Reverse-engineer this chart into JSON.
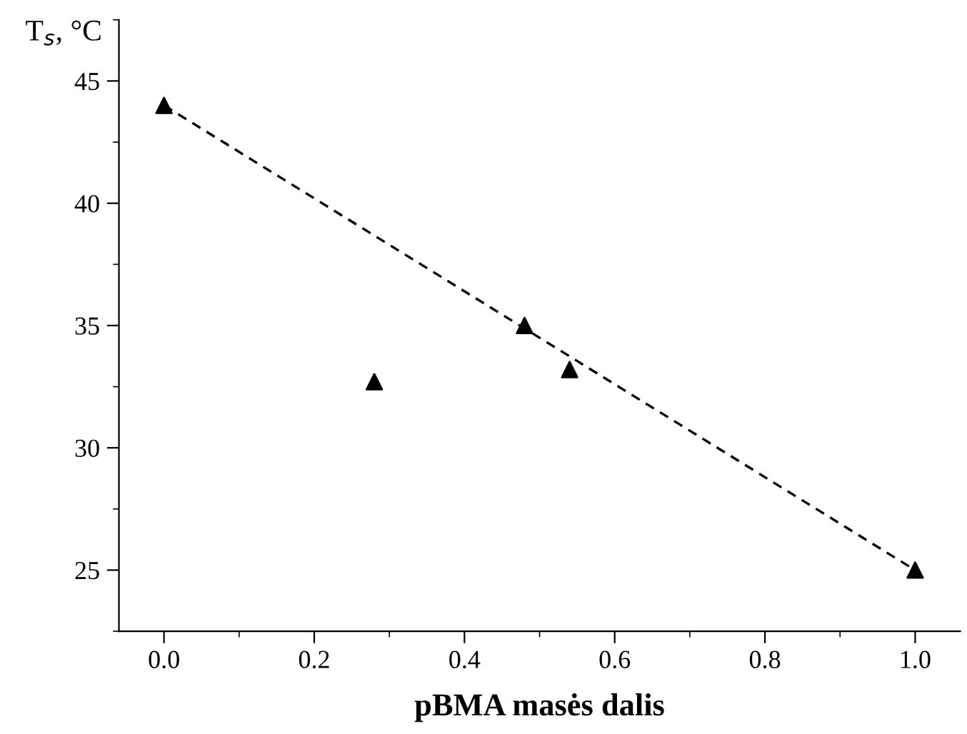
{
  "chart_data": {
    "type": "scatter",
    "xlabel": "pBMA masės dalis",
    "ylabel": "T$_{s}$, °C",
    "xlim": [
      -0.06,
      1.06
    ],
    "ylim": [
      22.5,
      47.5
    ],
    "xticks": [
      {
        "value": 0,
        "label": "0.0"
      },
      {
        "value": 0.2,
        "label": "0.2"
      },
      {
        "value": 0.4,
        "label": "0.4"
      },
      {
        "value": 0.6,
        "label": "0.6"
      },
      {
        "value": 0.8,
        "label": "0.8"
      },
      {
        "value": 1,
        "label": "1.0"
      }
    ],
    "yticks": [
      25,
      30,
      35,
      40,
      45
    ],
    "grid": false,
    "legend": false,
    "marker": "triangle",
    "series": [
      {
        "color": "#000000",
        "x": [
          0.0,
          0.28,
          0.48,
          0.54,
          1.0
        ],
        "values": [
          44.0,
          32.7,
          35.0,
          33.2,
          25.0
        ]
      },
      {
        "type": "line",
        "color": "#000000",
        "marker": "none",
        "line_style": "dashed",
        "x": [
          0.0,
          1.0
        ],
        "values": [
          44.0,
          25.0
        ]
      }
    ]
  }
}
